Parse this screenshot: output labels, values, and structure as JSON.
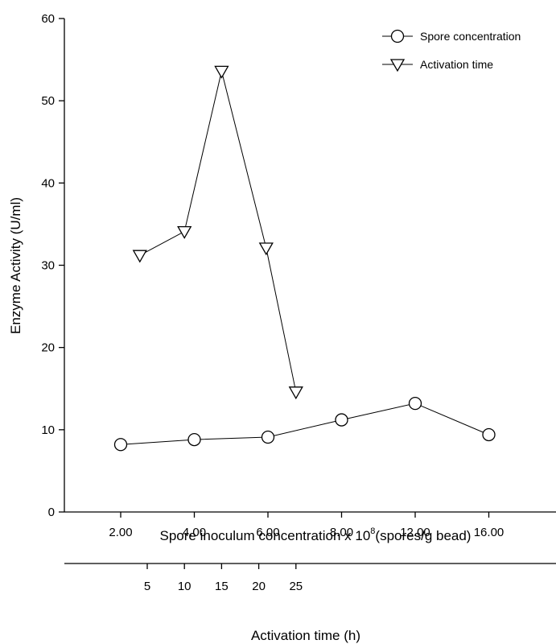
{
  "chart_data": {
    "type": "line",
    "ylabel": "Enzyme Activity (U/ml)",
    "ylim": [
      0,
      60
    ],
    "yticks": [
      "0",
      "10",
      "20",
      "30",
      "40",
      "50",
      "60"
    ],
    "xlabel_bottom_1": {
      "main": "Spore inoculum concentration x 10",
      "sup": "8",
      "tail": "(spores/g bead)"
    },
    "xticks_bottom_1": [
      "2.00",
      "4.00",
      "6.00",
      "8.00",
      "12.00",
      "16.00"
    ],
    "xlabel_bottom_2": "Activation time (h)",
    "xticks_bottom_2": [
      "5",
      "10",
      "15",
      "20",
      "25"
    ],
    "grid": false,
    "legend_position": "top-right",
    "series": [
      {
        "name": "Spore concentration",
        "marker": "circle",
        "x_axis": "bottom_1",
        "x": [
          "2.00",
          "4.00",
          "6.00",
          "8.00",
          "12.00",
          "16.00"
        ],
        "y": [
          8.2,
          8.8,
          9.1,
          11.2,
          13.2,
          9.4
        ]
      },
      {
        "name": "Activation time",
        "marker": "triangle-down",
        "x_axis": "bottom_2",
        "x": [
          4,
          10,
          15,
          21,
          25
        ],
        "y": [
          31.2,
          34.1,
          53.6,
          32.1,
          14.6
        ]
      }
    ]
  }
}
